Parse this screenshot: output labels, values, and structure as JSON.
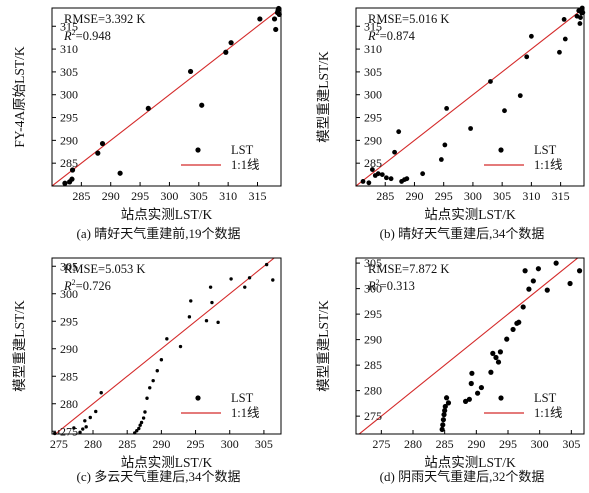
{
  "chart_data": [
    {
      "type": "scatter",
      "caption": "(a) 晴好天气重建前,19个数据",
      "xlabel": "站点实测LST/K",
      "ylabel": "FY-4A原始LST/K",
      "xlim": [
        280,
        319
      ],
      "ylim": [
        280,
        319
      ],
      "xticks": [
        285,
        290,
        295,
        300,
        305,
        310,
        315
      ],
      "yticks": [
        285,
        290,
        295,
        300,
        305,
        310,
        315
      ],
      "stats": {
        "rmse": "RMSE=3.392 K",
        "r2_label": "R",
        "r2_sup": "2",
        "r2_value": "=0.948"
      },
      "legend": {
        "points": "LST",
        "line": "1:1线",
        "position": "bottom-right"
      },
      "series": [
        {
          "name": "LST",
          "points": [
            [
              282.2,
              280.6
            ],
            [
              283.0,
              280.9
            ],
            [
              283.4,
              281.5
            ],
            [
              283.5,
              283.5
            ],
            [
              287.8,
              287.2
            ],
            [
              288.6,
              289.3
            ],
            [
              291.6,
              282.8
            ],
            [
              296.4,
              297.0
            ],
            [
              303.6,
              305.1
            ],
            [
              305.5,
              297.7
            ],
            [
              309.6,
              309.3
            ],
            [
              310.5,
              311.4
            ],
            [
              315.4,
              316.6
            ],
            [
              317.9,
              316.6
            ],
            [
              318.1,
              314.3
            ],
            [
              318.4,
              318.0
            ],
            [
              318.5,
              318.5
            ],
            [
              318.6,
              318.9
            ],
            [
              318.7,
              317.6
            ]
          ]
        }
      ],
      "one_to_one_line": true
    },
    {
      "type": "scatter",
      "caption": "(b) 晴好天气重建后,34个数据",
      "xlabel": "站点实测LST/K",
      "ylabel": "模型重建LST/K",
      "xlim": [
        280,
        319
      ],
      "ylim": [
        280,
        319
      ],
      "xticks": [
        285,
        290,
        295,
        300,
        305,
        310,
        315
      ],
      "yticks": [
        285,
        290,
        295,
        300,
        305,
        310,
        315
      ],
      "stats": {
        "rmse": "RMSE=5.016 K",
        "r2_label": "R",
        "r2_sup": "2",
        "r2_value": "=0.874"
      },
      "legend": {
        "points": "LST",
        "line": "1:1线",
        "position": "bottom-right"
      },
      "series": [
        {
          "name": "LST",
          "points": [
            [
              281.2,
              281.0
            ],
            [
              282.2,
              280.7
            ],
            [
              282.8,
              283.6
            ],
            [
              283.3,
              282.3
            ],
            [
              283.8,
              282.7
            ],
            [
              284.5,
              282.5
            ],
            [
              285.2,
              281.8
            ],
            [
              286.0,
              281.6
            ],
            [
              286.6,
              287.4
            ],
            [
              287.3,
              291.9
            ],
            [
              287.8,
              281.0
            ],
            [
              288.3,
              281.4
            ],
            [
              288.7,
              281.6
            ],
            [
              291.4,
              282.7
            ],
            [
              294.6,
              285.8
            ],
            [
              295.2,
              289.0
            ],
            [
              295.5,
              297.0
            ],
            [
              299.6,
              292.6
            ],
            [
              303.0,
              302.9
            ],
            [
              305.4,
              296.5
            ],
            [
              308.1,
              299.8
            ],
            [
              309.2,
              308.3
            ],
            [
              310.0,
              312.8
            ],
            [
              314.8,
              309.3
            ],
            [
              315.6,
              316.5
            ],
            [
              315.8,
              312.2
            ],
            [
              317.8,
              317.2
            ],
            [
              318.1,
              318.4
            ],
            [
              318.3,
              315.6
            ],
            [
              318.5,
              318.7
            ],
            [
              318.6,
              317.9
            ],
            [
              318.7,
              319.0
            ],
            [
              318.8,
              318.0
            ],
            [
              318.4,
              316.9
            ]
          ]
        }
      ],
      "one_to_one_line": true
    },
    {
      "type": "scatter",
      "caption": "(c) 多云天气重建后,34个数据",
      "xlabel": "站点实测LST/K",
      "ylabel": "模型重建LST/K",
      "xlim": [
        274,
        307.5
      ],
      "ylim": [
        274.5,
        306.5
      ],
      "xticks": [
        275,
        280,
        285,
        290,
        295,
        300,
        305
      ],
      "yticks": [
        275,
        280,
        285,
        290,
        295,
        300,
        305
      ],
      "stats": {
        "rmse": "RMSE=5.053 K",
        "r2_label": "R",
        "r2_sup": "2",
        "r2_value": "=0.726"
      },
      "legend": {
        "points": "LST",
        "line": "1:1线",
        "position": "bottom-right"
      },
      "series": [
        {
          "name": "LST",
          "points": [
            [
              274.4,
              274.6
            ],
            [
              277.2,
              275.6
            ],
            [
              278.1,
              274.8
            ],
            [
              278.5,
              275.4
            ],
            [
              278.8,
              276.9
            ],
            [
              279.0,
              275.8
            ],
            [
              279.6,
              277.5
            ],
            [
              280.4,
              278.6
            ],
            [
              281.2,
              282.0
            ],
            [
              286.1,
              274.7
            ],
            [
              286.4,
              275.1
            ],
            [
              286.7,
              275.5
            ],
            [
              286.9,
              276.1
            ],
            [
              287.1,
              276.6
            ],
            [
              287.4,
              277.4
            ],
            [
              287.6,
              278.5
            ],
            [
              287.9,
              281.0
            ],
            [
              288.3,
              282.9
            ],
            [
              288.8,
              284.2
            ],
            [
              289.4,
              286.0
            ],
            [
              290.0,
              288.0
            ],
            [
              290.8,
              291.8
            ],
            [
              292.8,
              290.4
            ],
            [
              294.1,
              295.8
            ],
            [
              294.3,
              298.7
            ],
            [
              296.6,
              295.1
            ],
            [
              297.2,
              301.2
            ],
            [
              297.4,
              298.4
            ],
            [
              298.3,
              294.8
            ],
            [
              300.2,
              302.7
            ],
            [
              302.2,
              301.2
            ],
            [
              302.9,
              302.9
            ],
            [
              305.4,
              305.3
            ],
            [
              306.3,
              302.5
            ]
          ]
        }
      ],
      "one_to_one_line": true
    },
    {
      "type": "scatter",
      "caption": "(d) 阴雨天气重建后,32个数据",
      "xlabel": "站点实测LST/K",
      "ylabel": "模型重建LST/K",
      "xlim": [
        271,
        307
      ],
      "ylim": [
        271.5,
        306
      ],
      "xticks": [
        275,
        280,
        285,
        290,
        295,
        300,
        305
      ],
      "yticks": [
        275,
        280,
        285,
        290,
        295,
        300,
        305
      ],
      "stats": {
        "rmse": "RMSE=7.872 K",
        "r2_label": "R",
        "r2_sup": "2",
        "r2_value": "=0.313"
      },
      "legend": {
        "points": "LST",
        "line": "1:1线",
        "position": "bottom-right"
      },
      "series": [
        {
          "name": "LST",
          "points": [
            [
              284.6,
              272.4
            ],
            [
              284.7,
              273.3
            ],
            [
              284.8,
              274.3
            ],
            [
              284.9,
              275.3
            ],
            [
              285.0,
              276.1
            ],
            [
              285.1,
              276.9
            ],
            [
              285.3,
              278.6
            ],
            [
              285.6,
              277.6
            ],
            [
              288.3,
              277.9
            ],
            [
              288.9,
              278.3
            ],
            [
              289.2,
              281.4
            ],
            [
              289.3,
              283.4
            ],
            [
              290.2,
              279.5
            ],
            [
              290.8,
              280.6
            ],
            [
              292.3,
              283.6
            ],
            [
              292.6,
              287.3
            ],
            [
              293.1,
              286.5
            ],
            [
              293.5,
              285.6
            ],
            [
              293.8,
              287.6
            ],
            [
              294.8,
              290.1
            ],
            [
              295.8,
              292.0
            ],
            [
              296.4,
              293.2
            ],
            [
              296.7,
              293.4
            ],
            [
              297.4,
              296.4
            ],
            [
              297.7,
              303.5
            ],
            [
              298.3,
              299.9
            ],
            [
              299.0,
              301.5
            ],
            [
              299.8,
              303.9
            ],
            [
              301.2,
              299.7
            ],
            [
              302.6,
              305.0
            ],
            [
              304.8,
              301.0
            ],
            [
              306.3,
              303.5
            ]
          ]
        }
      ],
      "one_to_one_line": true
    }
  ],
  "colors": {
    "line": "#d42a2a",
    "points": "#000000",
    "axis": "#000000"
  }
}
